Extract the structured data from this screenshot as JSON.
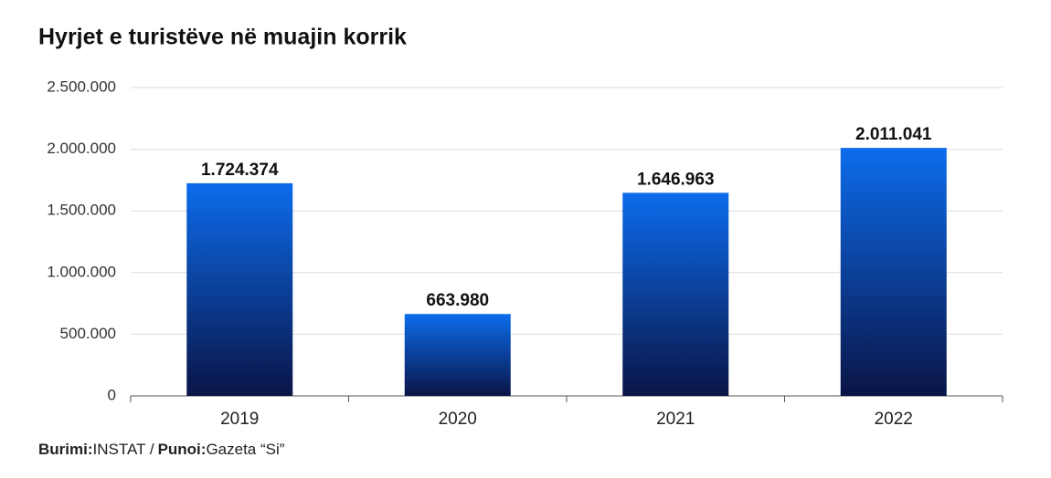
{
  "chart_data": {
    "type": "bar",
    "title": "Hyrjet e turistëve në muajin korrik",
    "categories": [
      "2019",
      "2020",
      "2021",
      "2022"
    ],
    "values": [
      1724374,
      663980,
      1646963,
      2011041
    ],
    "value_labels": [
      "1.724.374",
      "663.980",
      "1.646.963",
      "2.011.041"
    ],
    "color": "#0a1446",
    "ylim": [
      0,
      2500000
    ],
    "yticks": [
      0,
      {
        "value": 500000,
        "label": "500.000"
      },
      {
        "value": 1000000,
        "label": "1.000.000"
      },
      {
        "value": 1500000,
        "label": "1.500.000"
      },
      {
        "value": 2000000,
        "label": "2.000.000"
      },
      {
        "value": 2500000,
        "label": "2.500.000"
      }
    ],
    "grid": true,
    "source": [
      "Burimi:",
      "INSTAT /",
      "Punoi:",
      "Gazeta “Si”"
    ]
  }
}
